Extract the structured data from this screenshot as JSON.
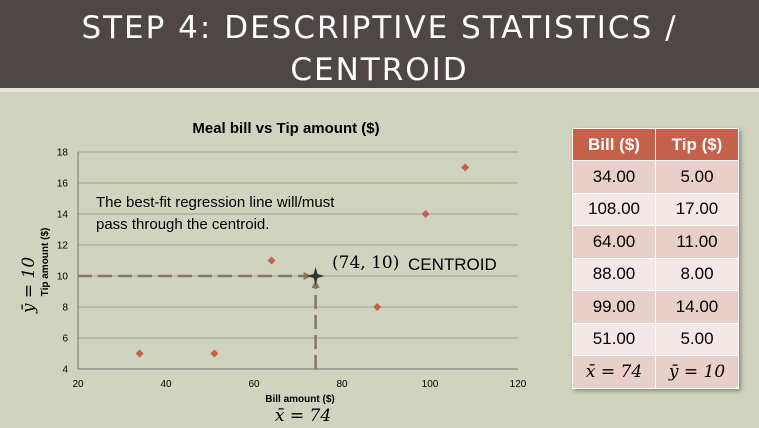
{
  "header": {
    "title_line1": "STEP 4: DESCRIPTIVE STATISTICS /",
    "title_line2": "CENTROID"
  },
  "chart_data": {
    "type": "scatter",
    "title": "Meal bill vs Tip amount ($)",
    "xlabel": "Bill amount ($)",
    "ylabel": "Tip amount ($)",
    "xlim": [
      20,
      120
    ],
    "ylim": [
      4,
      18
    ],
    "xticks": [
      20,
      40,
      60,
      80,
      100,
      120
    ],
    "yticks": [
      4,
      6,
      8,
      10,
      12,
      14,
      16,
      18
    ],
    "grid": "horizontal",
    "points": [
      {
        "x": 34,
        "y": 5
      },
      {
        "x": 108,
        "y": 17
      },
      {
        "x": 64,
        "y": 11
      },
      {
        "x": 88,
        "y": 8
      },
      {
        "x": 99,
        "y": 14
      },
      {
        "x": 51,
        "y": 5
      }
    ],
    "marker_color": "#c5604a",
    "centroid": {
      "x": 74,
      "y": 10
    },
    "annotation": "The best-fit regression line will/must\npass through the centroid.",
    "centroid_coord_label": "(74, 10)",
    "centroid_label": "CENTROID",
    "xbar_label": "x̄ = 74",
    "ybar_label": "ȳ = 10"
  },
  "table": {
    "headers": [
      "Bill ($)",
      "Tip ($)"
    ],
    "rows": [
      [
        "34.00",
        "5.00"
      ],
      [
        "108.00",
        "17.00"
      ],
      [
        "64.00",
        "11.00"
      ],
      [
        "88.00",
        "8.00"
      ],
      [
        "99.00",
        "14.00"
      ],
      [
        "51.00",
        "5.00"
      ]
    ],
    "footer": [
      "x̄ = 74",
      "ȳ = 10"
    ]
  },
  "colors": {
    "header_bg": "#4f4745",
    "background": "#d0d3bd",
    "table_header": "#c5604a",
    "table_row_dark": "#e9cfca",
    "table_row_light": "#f4e8e6",
    "dashed_line": "#8a7560"
  }
}
